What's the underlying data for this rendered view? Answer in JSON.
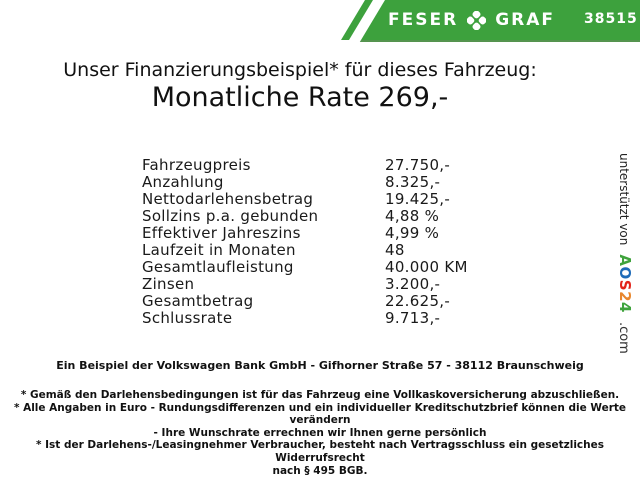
{
  "header": {
    "brand_left": "FESER",
    "brand_right": "GRAF",
    "number": "38515",
    "green": "#3DA13D",
    "green_edge": "#55944F"
  },
  "icons": {
    "brand_separator": "four-leaf-clover"
  },
  "title": {
    "line1": "Unser Finanzierungsbeispiel* für dieses Fahrzeug:",
    "line2": "Monatliche Rate 269,-"
  },
  "table": {
    "rows": [
      {
        "label": "Fahrzeugpreis",
        "value": "27.750,-"
      },
      {
        "label": "Anzahlung",
        "value": "8.325,-"
      },
      {
        "label": "Nettodarlehensbetrag",
        "value": "19.425,-"
      },
      {
        "label": "Sollzins p.a. gebunden",
        "value": "4,88 %"
      },
      {
        "label": "Effektiver Jahreszins",
        "value": "4,99 %"
      },
      {
        "label": "Laufzeit in Monaten",
        "value": "48"
      },
      {
        "label": "Gesamtlaufleistung",
        "value": "40.000 KM"
      },
      {
        "label": "Zinsen",
        "value": "3.200,-"
      },
      {
        "label": "Gesamtbetrag",
        "value": "22.625,-"
      },
      {
        "label": "Schlussrate",
        "value": "9.713,-"
      }
    ]
  },
  "footer": {
    "bank_line": "Ein Beispiel der Volkswagen Bank GmbH - Gifhorner Straße 57 - 38112 Braunschweig",
    "notes": [
      "* Gemäß den Darlehensbedingungen ist für das Fahrzeug eine Vollkaskoversicherung abzuschließen.",
      "* Alle Angaben in Euro - Rundungsdifferenzen und ein individueller Kreditschutzbrief können die Werte verändern",
      "- Ihre Wunschrate errechnen wir Ihnen gerne persönlich",
      "* Ist der Darlehens-/Leasingnehmer Verbraucher, besteht nach Vertragsschluss ein gesetzliches Widerrufsrecht",
      "nach § 495 BGB."
    ]
  },
  "sidebar": {
    "supported_by": "unterstützt von",
    "logo_letters": [
      {
        "char": "A",
        "color": "#3FA33C"
      },
      {
        "char": "O",
        "color": "#1E6BB8"
      },
      {
        "char": "S",
        "color": "#E2231A"
      },
      {
        "char": "2",
        "color": "#E8862D"
      },
      {
        "char": "4",
        "color": "#3FA33C"
      }
    ],
    "domain": ".com"
  }
}
